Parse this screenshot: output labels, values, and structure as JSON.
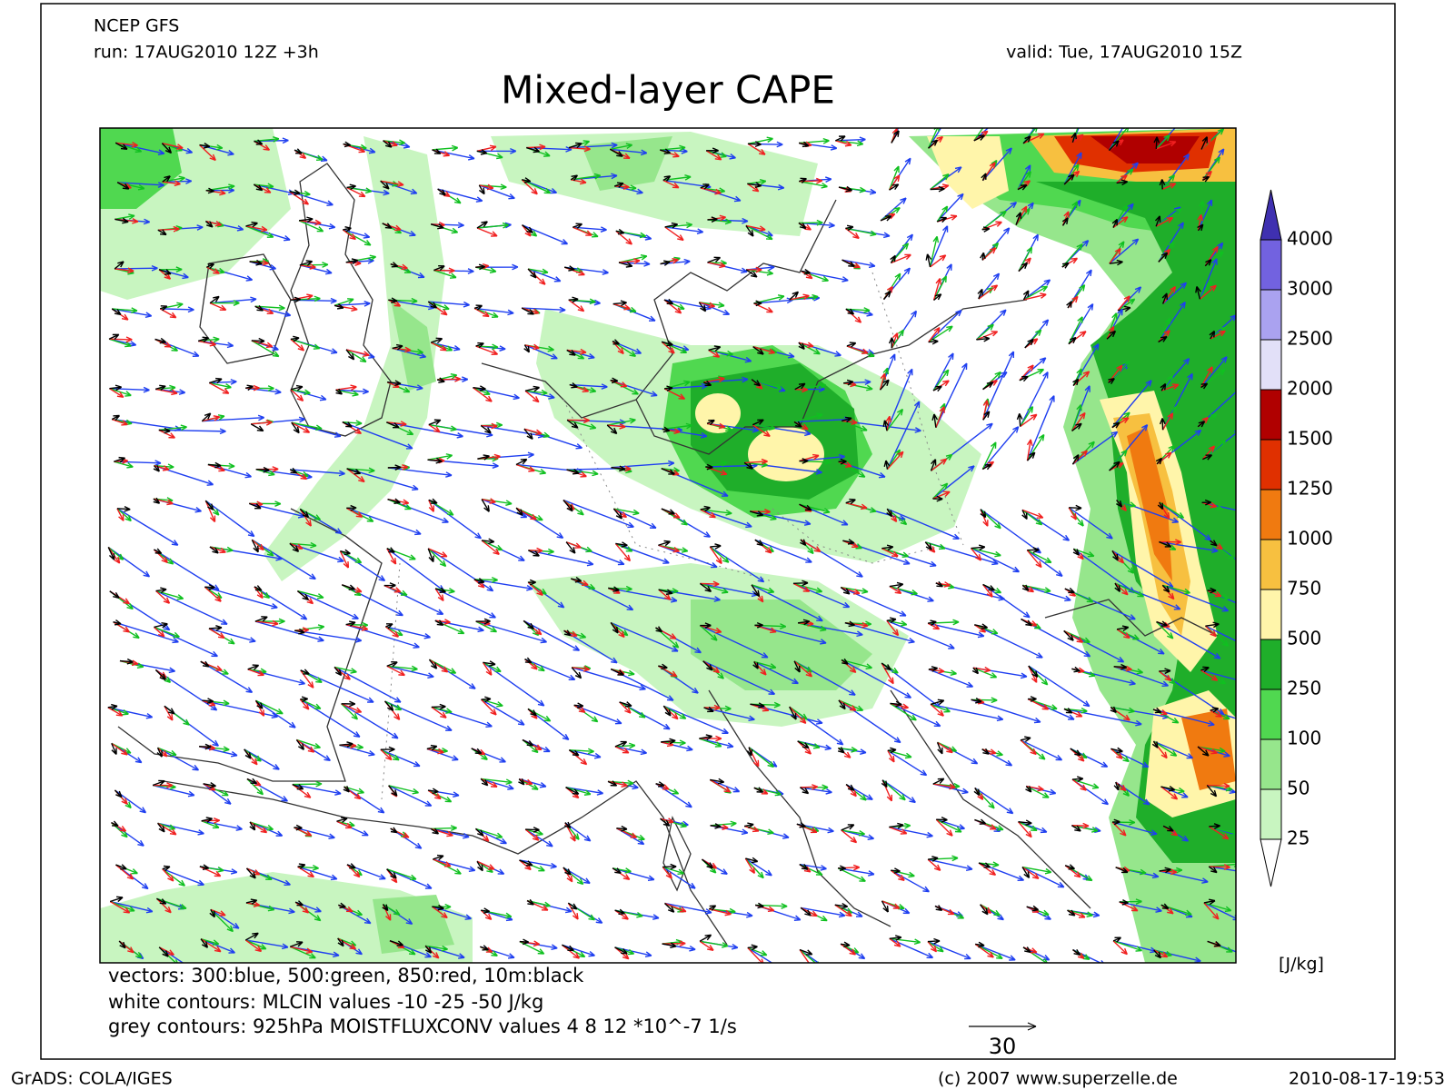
{
  "header": {
    "model": "NCEP GFS",
    "run": "run: 17AUG2010 12Z +3h",
    "valid": "valid: Tue, 17AUG2010 15Z",
    "title": "Mixed-layer CAPE"
  },
  "colorbar": {
    "levels": [
      25,
      50,
      100,
      250,
      500,
      750,
      1000,
      1250,
      1500,
      2000,
      2500,
      3000,
      4000
    ],
    "colors": [
      "#ffffff",
      "#c8f5c0",
      "#96e68c",
      "#50d850",
      "#1fae2a",
      "#fff5aa",
      "#f7c040",
      "#f07a10",
      "#e03000",
      "#b00000",
      "#e2e0f8",
      "#aaa2f0",
      "#7262e0",
      "#3f30b0"
    ],
    "unit": "[J/kg]"
  },
  "notes": [
    "vectors: 300:blue, 500:green, 850:red, 10m:black",
    "white contours: MLCIN values -10 -25 -50 J/kg",
    "grey contours: 925hPa MOISTFLUXCONV values 4 8 12 *10^-7 1/s"
  ],
  "scale_vector": {
    "label": "30"
  },
  "footer": {
    "software": "GrADS: COLA/IGES",
    "copyright": "(c) 2007 www.superzelle.de",
    "timestamp": "2010-08-17-19:53"
  }
}
